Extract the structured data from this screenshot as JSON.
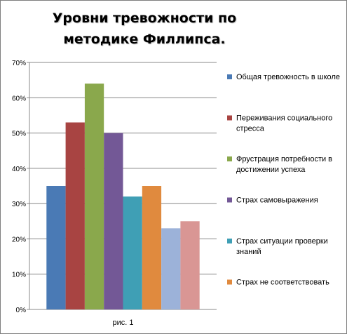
{
  "chart_data": {
    "type": "bar",
    "title": "Уровни тревожности по методике Филлипса.",
    "categories": [
      "рис. 1"
    ],
    "series": [
      {
        "name": "Общая тревожность в школе",
        "values": [
          35
        ],
        "color": "#4a7ab5"
      },
      {
        "name": "Переживания социального стресса",
        "values": [
          53
        ],
        "color": "#a84442"
      },
      {
        "name": "Фрустрация потребности в достижении успеха",
        "values": [
          64
        ],
        "color": "#8aa84c"
      },
      {
        "name": "Страх самовыражения",
        "values": [
          50
        ],
        "color": "#735896"
      },
      {
        "name": "Страх ситуации проверки знаний",
        "values": [
          32
        ],
        "color": "#3f9fb5"
      },
      {
        "name": "Страх не соответствовать",
        "values": [
          35
        ],
        "color": "#e08a3e"
      },
      {
        "name": "",
        "values": [
          23
        ],
        "color": "#9cb2d9"
      },
      {
        "name": "",
        "values": [
          25
        ],
        "color": "#d99694"
      }
    ],
    "ylim": [
      0,
      70
    ],
    "yticks": [
      "0%",
      "10%",
      "20%",
      "30%",
      "40%",
      "50%",
      "60%",
      "70%"
    ],
    "grid": true,
    "legend": "right"
  }
}
